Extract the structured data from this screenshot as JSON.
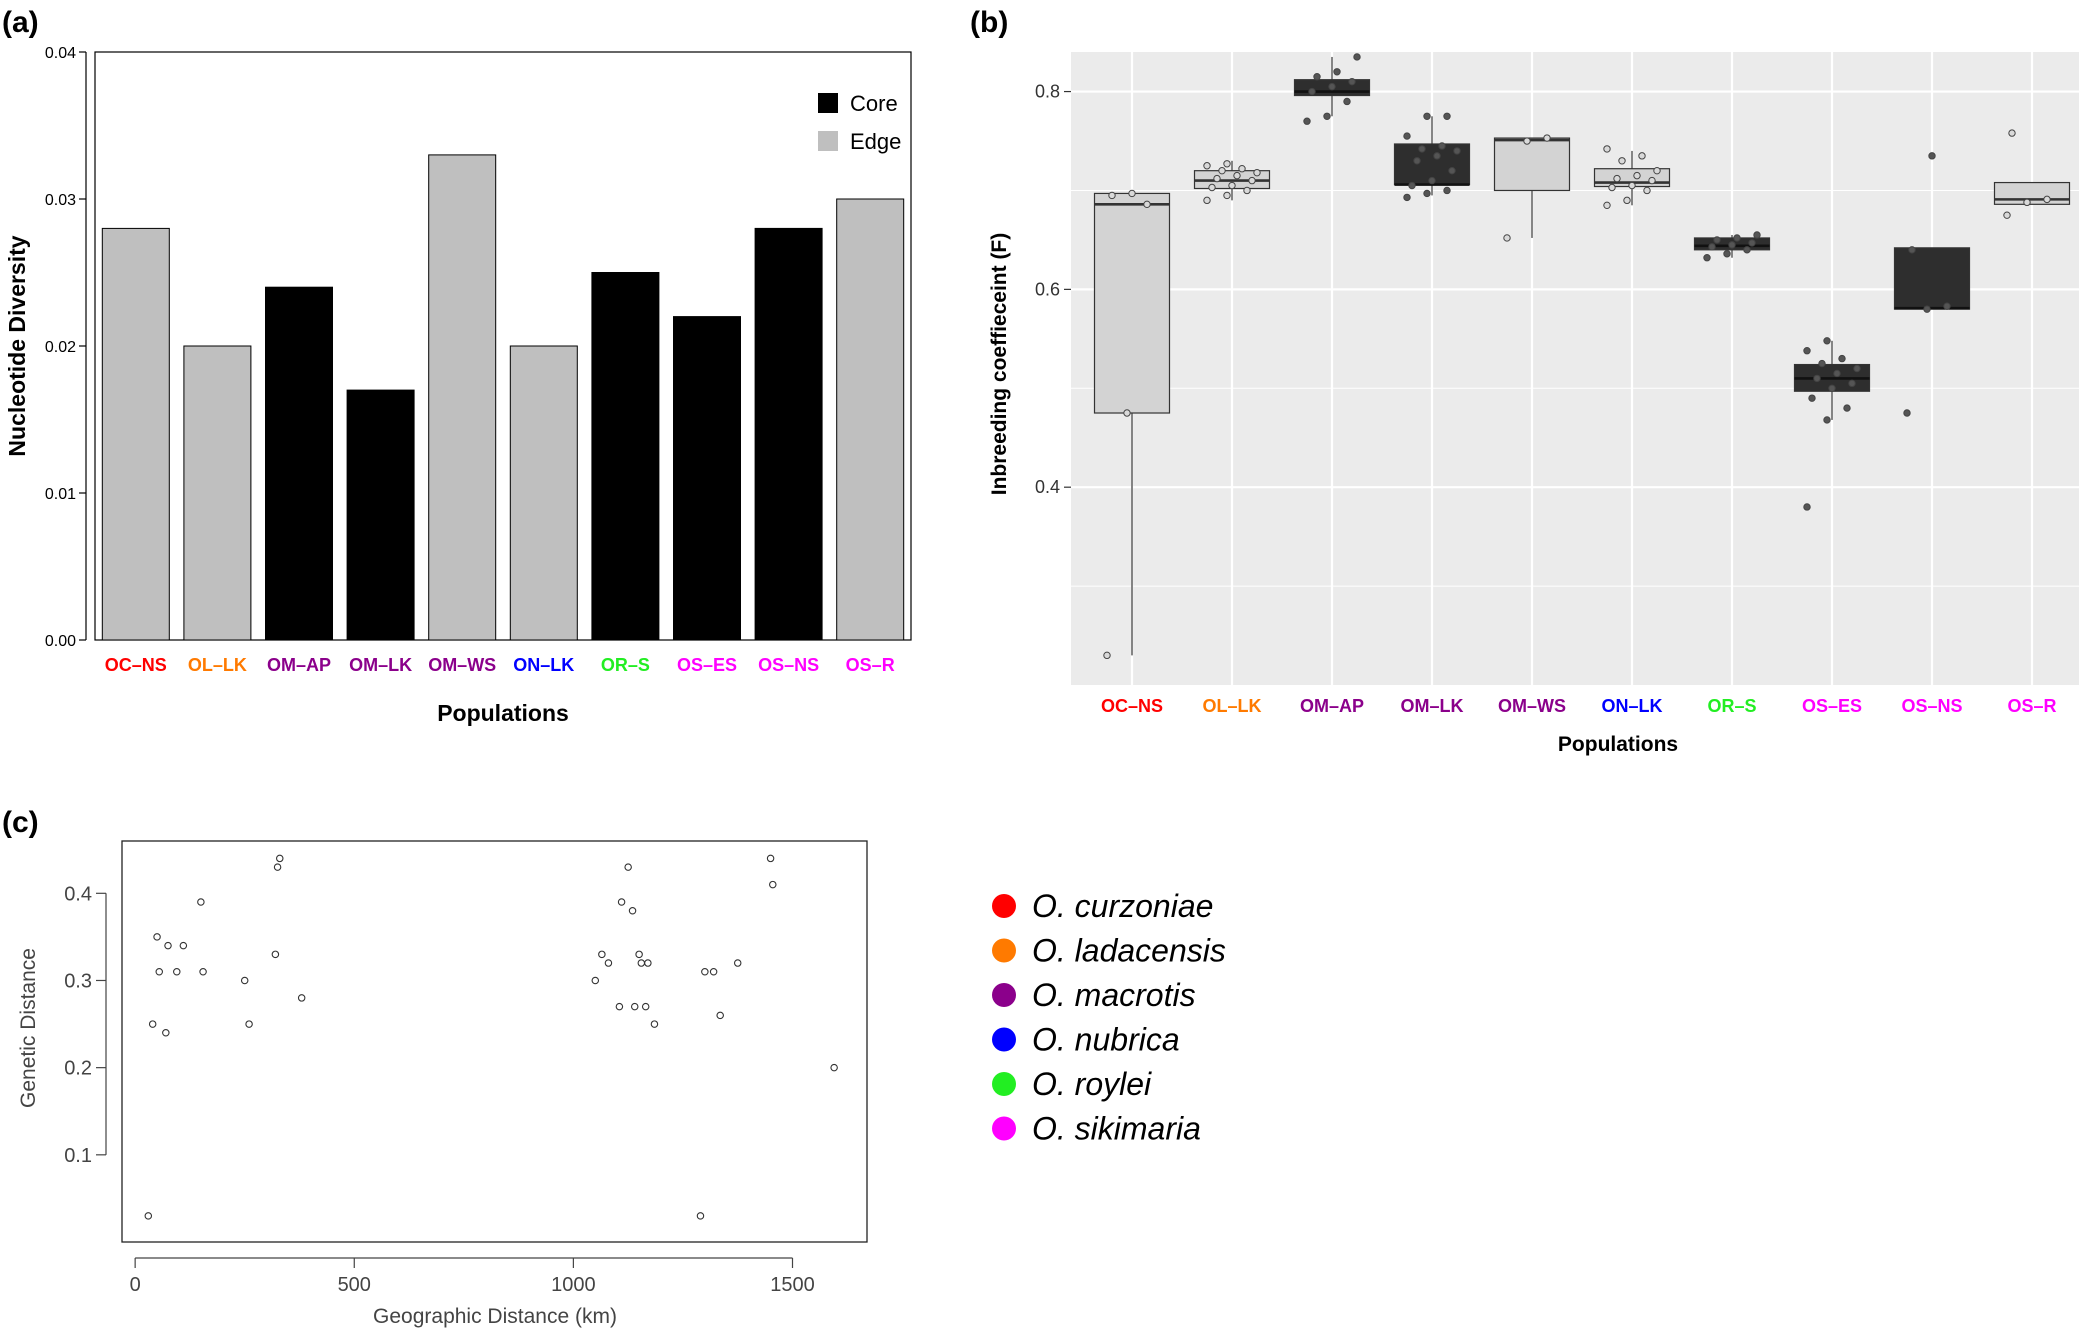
{
  "colors": {
    "core": "#000000",
    "edge": "#bfbfbf",
    "box_core": "#2e2e2e",
    "box_edge": "#d3d3d3",
    "panel_bg": "#ebebeb",
    "grid": "#ffffff"
  },
  "label_colors": {
    "OC-NS": "#ff0000",
    "OL-LK": "#ff7a00",
    "OM-AP": "#8b008b",
    "OM-LK": "#8b008b",
    "OM-WS": "#8b008b",
    "ON-LK": "#0000ff",
    "OR-S": "#22ee22",
    "OS-ES": "#ff00ff",
    "OS-NS": "#ff00ff",
    "OS-R": "#ff00ff"
  },
  "chart_data": [
    {
      "panel": "(a)",
      "type": "bar",
      "xlabel": "Populations",
      "ylabel": "Nucleotide Diversity",
      "ylim": [
        0,
        0.04
      ],
      "yticks": [
        "0.00",
        "0.01",
        "0.02",
        "0.03",
        "0.04"
      ],
      "categories": [
        "OC–NS",
        "OL–LK",
        "OM–AP",
        "OM–LK",
        "OM–WS",
        "ON–LK",
        "OR–S",
        "OS–ES",
        "OS–NS",
        "OS–R"
      ],
      "values": [
        0.028,
        0.02,
        0.024,
        0.017,
        0.033,
        0.02,
        0.025,
        0.022,
        0.028,
        0.03
      ],
      "groups": [
        "Edge",
        "Edge",
        "Core",
        "Core",
        "Edge",
        "Edge",
        "Core",
        "Core",
        "Core",
        "Edge"
      ],
      "legend": [
        "Core",
        "Edge"
      ],
      "legend_position": "top-right"
    },
    {
      "panel": "(b)",
      "type": "box",
      "xlabel": "Populations",
      "ylabel": "Inbreeding coeffieceint (F)",
      "ylim": [
        0.2,
        0.84
      ],
      "yticks": [
        "0.4",
        "0.6",
        "0.8"
      ],
      "grid": true,
      "categories": [
        "OC–NS",
        "OL–LK",
        "OM–AP",
        "OM–LK",
        "OM–WS",
        "ON–LK",
        "OR–S",
        "OS–ES",
        "OS–NS",
        "OS–R"
      ],
      "groups": [
        "Edge",
        "Edge",
        "Core",
        "Core",
        "Edge",
        "Edge",
        "Core",
        "Core",
        "Core",
        "Edge"
      ],
      "boxes": [
        {
          "whisker_low": 0.23,
          "q1": 0.475,
          "median": 0.686,
          "q3": 0.697,
          "whisker_high": 0.697,
          "points": [
            0.23,
            0.475,
            0.686,
            0.695,
            0.697
          ]
        },
        {
          "whisker_low": 0.69,
          "q1": 0.702,
          "median": 0.71,
          "q3": 0.72,
          "whisker_high": 0.73,
          "points": [
            0.69,
            0.695,
            0.7,
            0.703,
            0.705,
            0.71,
            0.712,
            0.715,
            0.718,
            0.72,
            0.722,
            0.725,
            0.727
          ]
        },
        {
          "whisker_low": 0.775,
          "q1": 0.796,
          "median": 0.8,
          "q3": 0.812,
          "whisker_high": 0.835,
          "points": [
            0.77,
            0.775,
            0.79,
            0.8,
            0.805,
            0.81,
            0.815,
            0.82,
            0.835
          ]
        },
        {
          "whisker_low": 0.695,
          "q1": 0.706,
          "median": 0.706,
          "q3": 0.747,
          "whisker_high": 0.775,
          "points": [
            0.693,
            0.697,
            0.7,
            0.705,
            0.71,
            0.72,
            0.73,
            0.735,
            0.74,
            0.742,
            0.745,
            0.755,
            0.775,
            0.775
          ]
        },
        {
          "whisker_low": 0.652,
          "q1": 0.7,
          "median": 0.751,
          "q3": 0.753,
          "whisker_high": 0.753,
          "points": [
            0.652,
            0.75,
            0.753
          ]
        },
        {
          "whisker_low": 0.685,
          "q1": 0.704,
          "median": 0.708,
          "q3": 0.722,
          "whisker_high": 0.74,
          "points": [
            0.685,
            0.69,
            0.7,
            0.703,
            0.705,
            0.71,
            0.712,
            0.715,
            0.72,
            0.73,
            0.735,
            0.742
          ]
        },
        {
          "whisker_low": 0.632,
          "q1": 0.64,
          "median": 0.644,
          "q3": 0.652,
          "whisker_high": 0.655,
          "points": [
            0.632,
            0.636,
            0.64,
            0.643,
            0.645,
            0.647,
            0.65,
            0.652,
            0.655
          ]
        },
        {
          "whisker_low": 0.468,
          "q1": 0.497,
          "median": 0.51,
          "q3": 0.524,
          "whisker_high": 0.548,
          "points": [
            0.38,
            0.468,
            0.48,
            0.49,
            0.5,
            0.505,
            0.51,
            0.515,
            0.52,
            0.525,
            0.53,
            0.538,
            0.548
          ]
        },
        {
          "whisker_low": 0.58,
          "q1": 0.58,
          "median": 0.581,
          "q3": 0.642,
          "whisker_high": 0.642,
          "points": [
            0.475,
            0.58,
            0.583,
            0.64,
            0.735
          ]
        },
        {
          "whisker_low": 0.686,
          "q1": 0.686,
          "median": 0.691,
          "q3": 0.708,
          "whisker_high": 0.708,
          "points": [
            0.675,
            0.688,
            0.691,
            0.758
          ]
        }
      ]
    },
    {
      "panel": "(c)",
      "type": "scatter",
      "xlabel": "Geographic Distance (km)",
      "ylabel": "Genetic Distance",
      "xlim": [
        -30,
        1670
      ],
      "ylim": [
        0.0,
        0.46
      ],
      "xticks": [
        "0",
        "500",
        "1000",
        "1500"
      ],
      "yticks": [
        "0.1",
        "0.2",
        "0.3",
        "0.4"
      ],
      "x": [
        30,
        40,
        50,
        55,
        70,
        75,
        95,
        110,
        150,
        155,
        250,
        260,
        320,
        325,
        330,
        380,
        1050,
        1065,
        1080,
        1105,
        1110,
        1125,
        1135,
        1140,
        1150,
        1155,
        1165,
        1170,
        1185,
        1290,
        1300,
        1320,
        1335,
        1375,
        1450,
        1455,
        1595
      ],
      "y": [
        0.03,
        0.25,
        0.35,
        0.31,
        0.24,
        0.34,
        0.31,
        0.34,
        0.39,
        0.31,
        0.3,
        0.25,
        0.33,
        0.43,
        0.44,
        0.28,
        0.3,
        0.33,
        0.32,
        0.27,
        0.39,
        0.43,
        0.38,
        0.27,
        0.33,
        0.32,
        0.27,
        0.32,
        0.25,
        0.03,
        0.31,
        0.31,
        0.26,
        0.32,
        0.44,
        0.41,
        0.2
      ]
    }
  ],
  "species_legend": [
    {
      "name": "O. curzoniae",
      "color": "#ff0000"
    },
    {
      "name": "O. ladacensis",
      "color": "#ff7a00"
    },
    {
      "name": "O. macrotis",
      "color": "#8b008b"
    },
    {
      "name": "O. nubrica",
      "color": "#0000ff"
    },
    {
      "name": "O. roylei",
      "color": "#22ee22"
    },
    {
      "name": "O. sikimaria",
      "color": "#ff00ff"
    }
  ]
}
